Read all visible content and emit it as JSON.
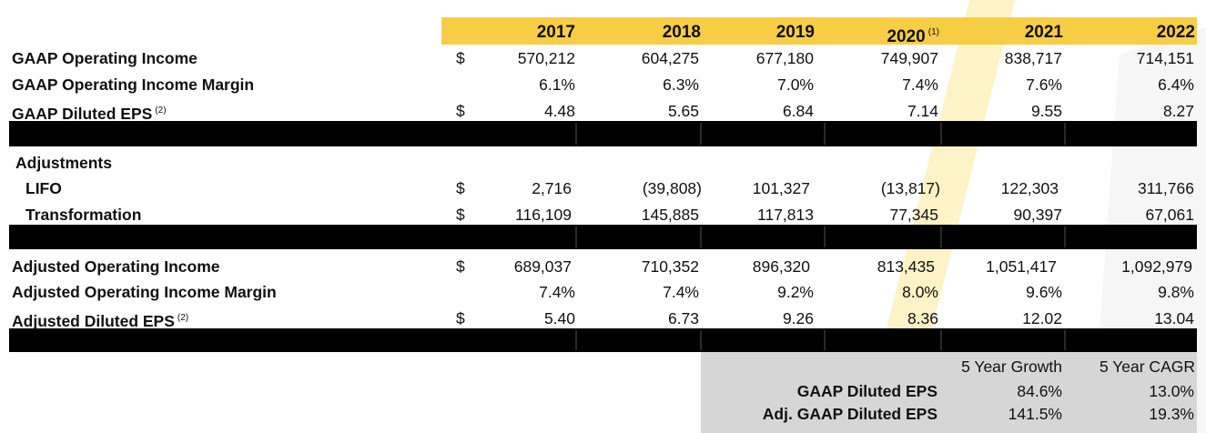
{
  "years": [
    {
      "label": "2017",
      "note": ""
    },
    {
      "label": "2018",
      "note": ""
    },
    {
      "label": "2019",
      "note": ""
    },
    {
      "label": "2020",
      "note": "(1)"
    },
    {
      "label": "2021",
      "note": ""
    },
    {
      "label": "2022",
      "note": ""
    }
  ],
  "currency_symbol": "$",
  "gaap": {
    "operating_income": {
      "label": "GAAP Operating Income",
      "values": [
        "570,212",
        "604,275",
        "677,180",
        "749,907",
        "838,717",
        "714,151"
      ]
    },
    "operating_margin": {
      "label": "GAAP Operating Income Margin",
      "values": [
        "6.1%",
        "6.3%",
        "7.0%",
        "7.4%",
        "7.6%",
        "6.4%"
      ]
    },
    "diluted_eps": {
      "label": "GAAP Diluted EPS",
      "note": "(2)",
      "values": [
        "4.48",
        "5.65",
        "6.84",
        "7.14",
        "9.55",
        "8.27"
      ]
    }
  },
  "adjustments": {
    "heading": "Adjustments",
    "lifo": {
      "label": "LIFO",
      "values": [
        "2,716",
        "(39,808)",
        "101,327",
        "(13,817)",
        "122,303",
        "311,766"
      ]
    },
    "transformation": {
      "label": "Transformation",
      "values": [
        "116,109",
        "145,885",
        "117,813",
        "77,345",
        "90,397",
        "67,061"
      ]
    }
  },
  "adjusted": {
    "operating_income": {
      "label": "Adjusted Operating Income",
      "values": [
        "689,037",
        "710,352",
        "896,320",
        "813,435",
        "1,051,417",
        "1,092,979"
      ]
    },
    "operating_margin": {
      "label": "Adjusted Operating Income Margin",
      "values": [
        "7.4%",
        "7.4%",
        "9.2%",
        "8.0%",
        "9.6%",
        "9.8%"
      ]
    },
    "diluted_eps": {
      "label": "Adjusted Diluted EPS",
      "note": "(2)",
      "values": [
        "5.40",
        "6.73",
        "9.26",
        "8.36",
        "12.02",
        "13.04"
      ]
    }
  },
  "summary": {
    "headers": [
      "5 Year Growth",
      "5 Year CAGR"
    ],
    "rows": [
      {
        "label": "GAAP Diluted EPS",
        "growth": "84.6%",
        "cagr": "13.0%"
      },
      {
        "label": "Adj. GAAP Diluted EPS",
        "growth": "141.5%",
        "cagr": "19.3%"
      }
    ]
  },
  "colors": {
    "header_band": "#f8cd46",
    "watermark": "#fdf3c6",
    "summary_bg": "#d6d6d6",
    "black_band": "#000000"
  }
}
